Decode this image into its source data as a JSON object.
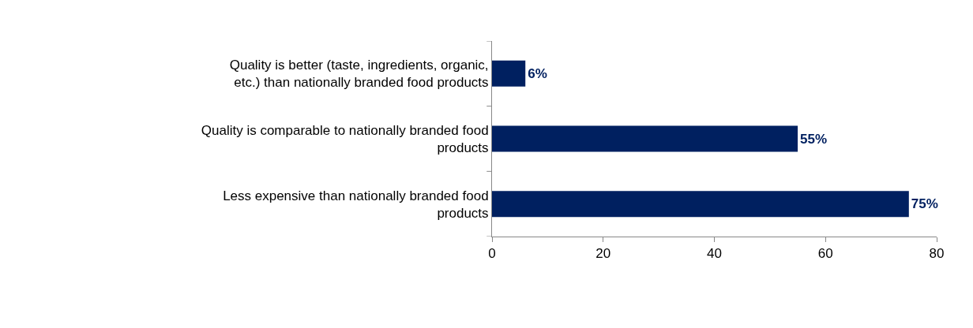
{
  "chart_data": {
    "type": "bar",
    "orientation": "horizontal",
    "categories": [
      "Quality is better (taste, ingredients, organic, etc.) than nationally branded food products",
      "Quality is comparable to nationally branded food products",
      "Less expensive than nationally branded food products"
    ],
    "values": [
      6,
      55,
      75
    ],
    "value_labels": [
      "6%",
      "55%",
      "75%"
    ],
    "color": "#002060",
    "xlim": [
      0,
      80
    ],
    "xticks": [
      0,
      20,
      40,
      60,
      80
    ],
    "grid": false
  }
}
